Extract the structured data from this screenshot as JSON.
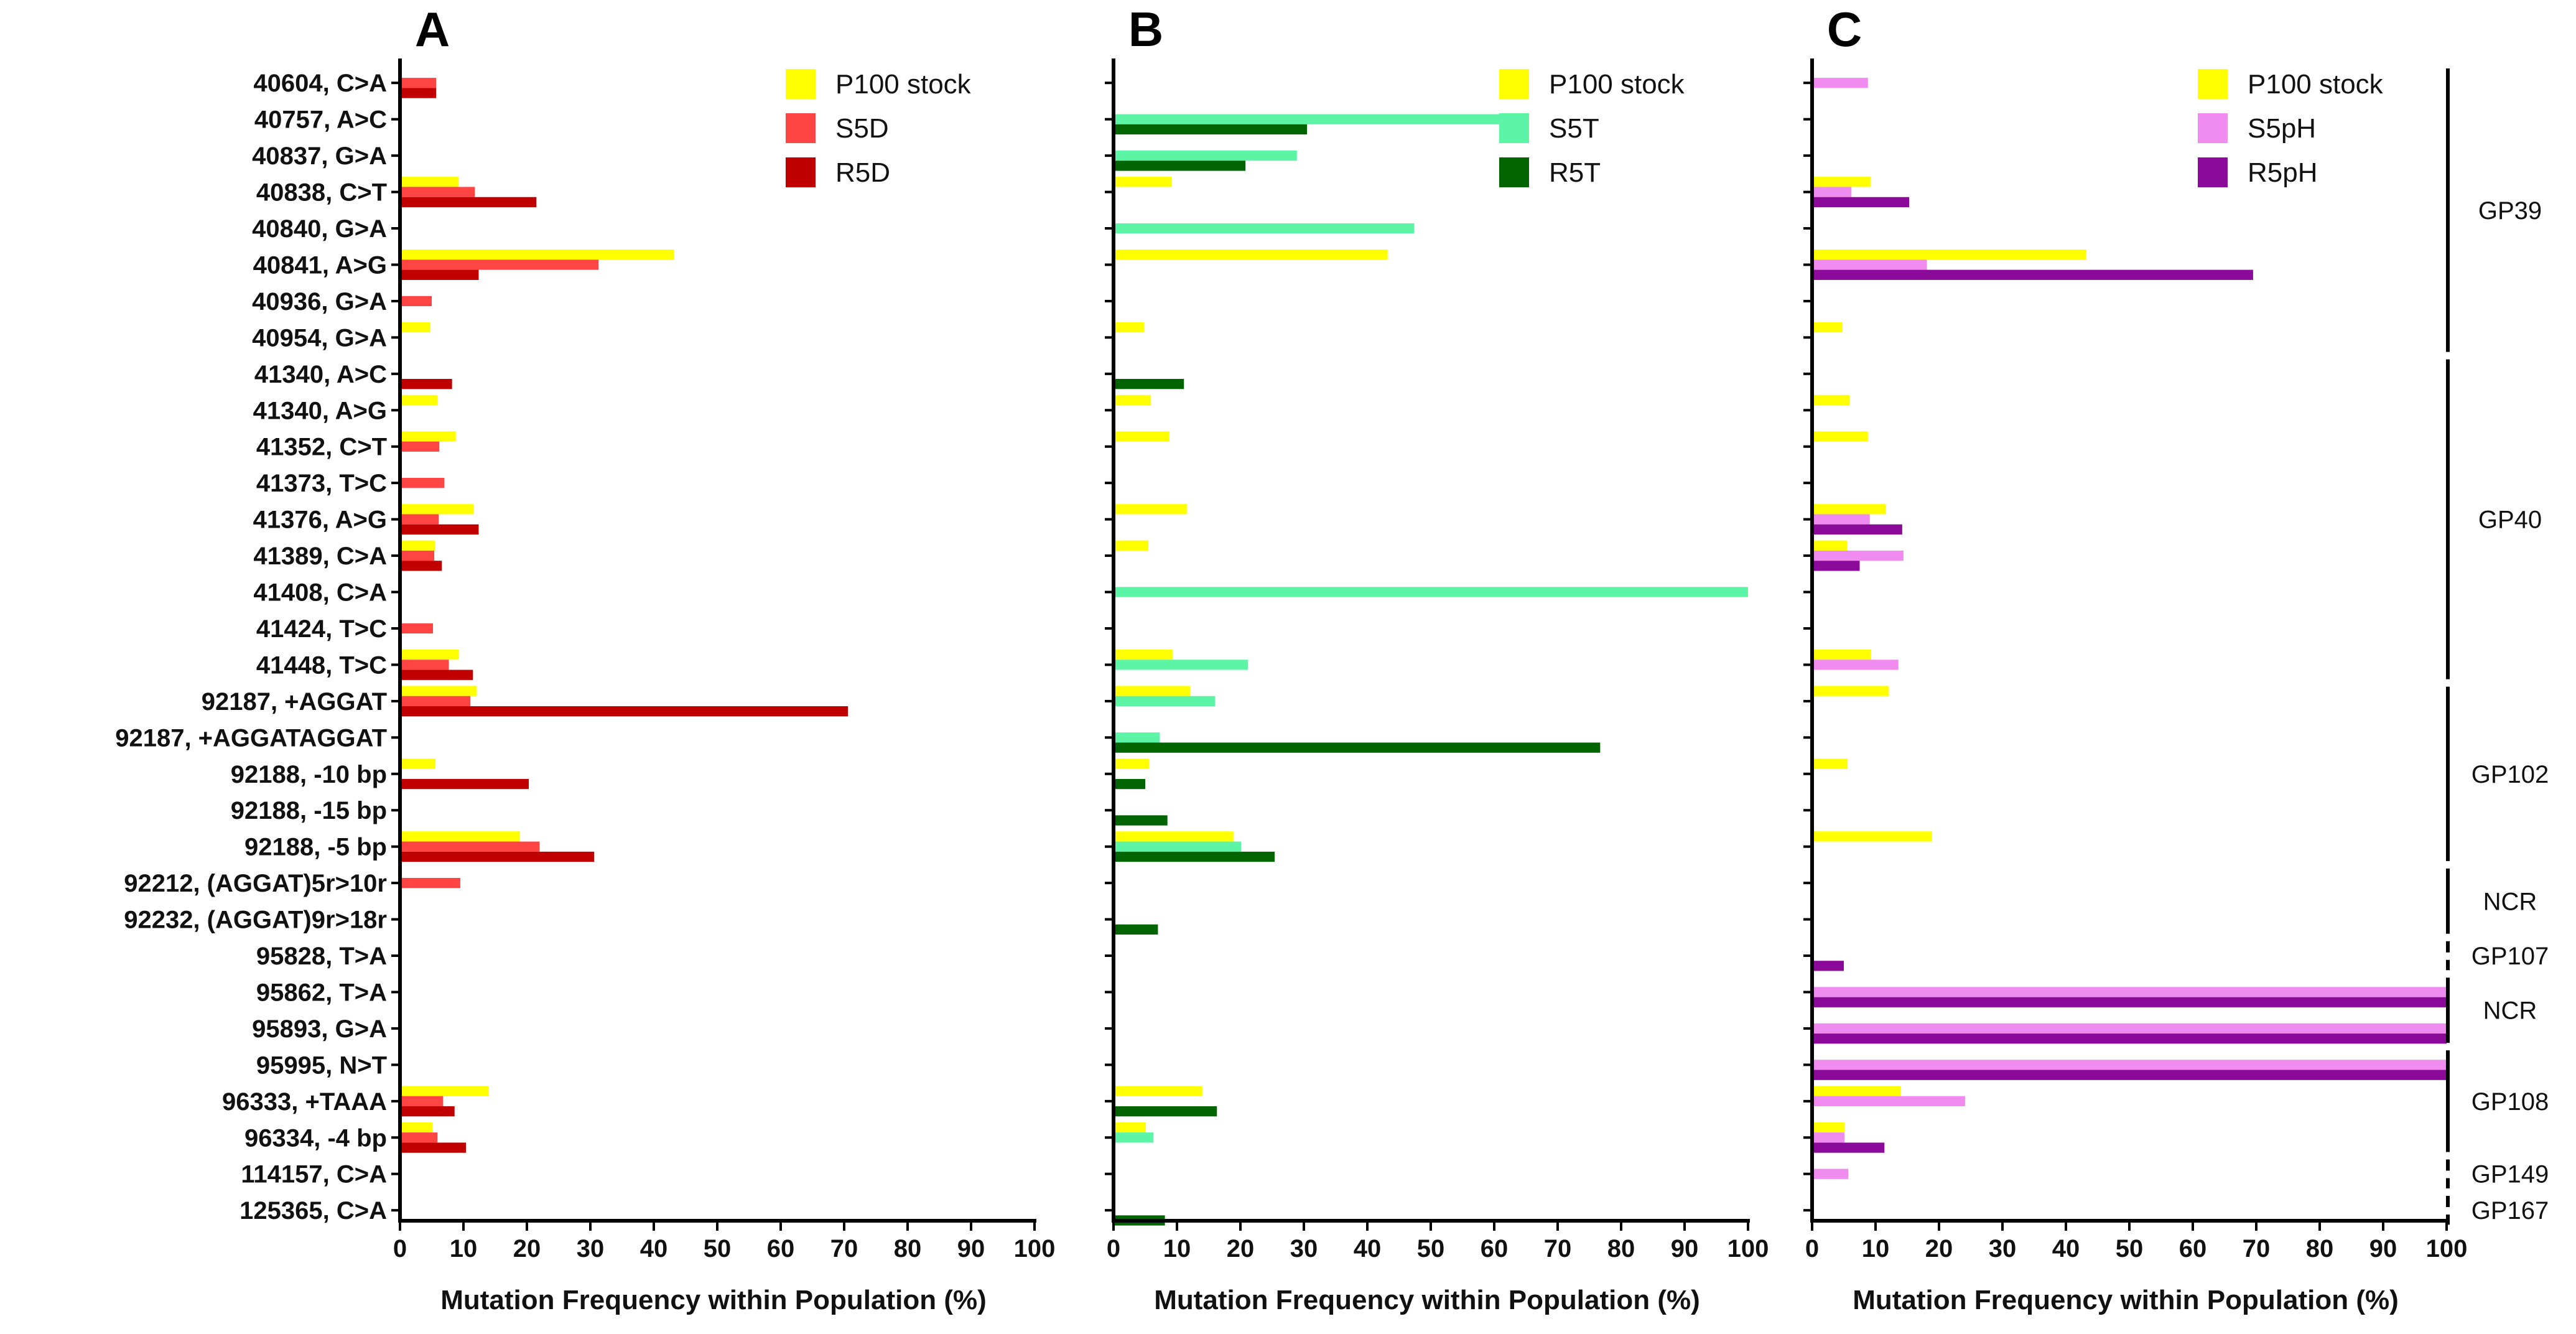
{
  "figure": {
    "panel_labels": [
      "A",
      "B",
      "C"
    ],
    "xlabel": "Mutation Frequency within Population (%)"
  },
  "chart_data": [
    {
      "type": "bar",
      "orientation": "horizontal",
      "panel": "A",
      "xlabel": "Mutation Frequency within Population (%)",
      "xlim": [
        0,
        100
      ],
      "xticks": [
        0,
        10,
        20,
        30,
        40,
        50,
        60,
        70,
        80,
        90,
        100
      ],
      "legend_position": "top-right",
      "categories": [
        "40604, C>A",
        "40757, A>C",
        "40837, G>A",
        "40838, C>T",
        "40840, G>A",
        "40841, A>G",
        "40936, G>A",
        "40954, G>A",
        "41340, A>C",
        "41340, A>G",
        "41352, C>T",
        "41373, T>C",
        "41376, A>G",
        "41389, C>A",
        "41408, C>A",
        "41424, T>C",
        "41448, T>C",
        "92187, +AGGAT",
        "92187, +AGGATAGGAT",
        "92188, -10 bp",
        "92188, -15 bp",
        "92188, -5 bp",
        "92212, (AGGAT)5r>10r",
        "92232, (AGGAT)9r>18r",
        "95828, T>A",
        "95862, T>A",
        "95893, G>A",
        "95995, N>T",
        "96333, +TAAA",
        "96334, -4 bp",
        "114157, C>A",
        "125365, C>A"
      ],
      "series": [
        {
          "name": "P100 stock",
          "color": "#FFFF00",
          "values": [
            0,
            0,
            0,
            9.2,
            0,
            43.2,
            0,
            4.8,
            0,
            5.9,
            8.8,
            0,
            11.6,
            5.5,
            0,
            0,
            9.3,
            12.1,
            0,
            5.6,
            0,
            18.9,
            0,
            0,
            0,
            0,
            0,
            0,
            14,
            5.1,
            0,
            0
          ]
        },
        {
          "name": "S5D",
          "color": "#FF4444",
          "values": [
            5.7,
            0,
            0,
            11.8,
            0,
            31.3,
            5,
            0,
            0,
            0,
            6.2,
            7,
            6.1,
            5.4,
            0,
            5.2,
            7.7,
            11.1,
            0,
            0,
            0,
            22,
            9.5,
            0,
            0,
            0,
            0,
            0,
            6.8,
            5.9,
            0,
            0
          ]
        },
        {
          "name": "R5D",
          "color": "#C00000",
          "values": [
            5.7,
            0,
            0,
            21.5,
            0,
            12.4,
            0,
            0,
            8.2,
            0,
            0,
            0,
            12.4,
            6.6,
            0,
            0,
            11.5,
            70.6,
            0,
            20.3,
            0,
            30.6,
            0,
            0,
            0,
            0,
            0,
            0,
            8.6,
            10.4,
            0,
            0
          ]
        }
      ]
    },
    {
      "type": "bar",
      "orientation": "horizontal",
      "panel": "B",
      "xlabel": "Mutation Frequency within Population (%)",
      "xlim": [
        0,
        100
      ],
      "xticks": [
        0,
        10,
        20,
        30,
        40,
        50,
        60,
        70,
        80,
        90,
        100
      ],
      "legend_position": "top-right",
      "categories": [
        "40604, C>A",
        "40757, A>C",
        "40837, G>A",
        "40838, C>T",
        "40840, G>A",
        "40841, A>G",
        "40936, G>A",
        "40954, G>A",
        "41340, A>C",
        "41340, A>G",
        "41352, C>T",
        "41373, T>C",
        "41376, A>G",
        "41389, C>A",
        "41408, C>A",
        "41424, T>C",
        "41448, T>C",
        "92187, +AGGAT",
        "92187, +AGGATAGGAT",
        "92188, -10 bp",
        "92188, -15 bp",
        "92188, -5 bp",
        "92212, (AGGAT)5r>10r",
        "92232, (AGGAT)9r>18r",
        "95828, T>A",
        "95862, T>A",
        "95893, G>A",
        "95995, N>T",
        "96333, +TAAA",
        "96334, -4 bp",
        "114157, C>A",
        "125365, C>A"
      ],
      "series": [
        {
          "name": "P100 stock",
          "color": "#FFFF00",
          "values": [
            0,
            0,
            0,
            9.2,
            0,
            43.2,
            0,
            4.8,
            0,
            5.9,
            8.8,
            0,
            11.6,
            5.5,
            0,
            0,
            9.3,
            12.1,
            0,
            5.6,
            0,
            18.9,
            0,
            0,
            0,
            0,
            0,
            0,
            14,
            5.1,
            0,
            0
          ]
        },
        {
          "name": "S5T",
          "color": "#5CF5A6",
          "values": [
            0,
            65.3,
            28.9,
            0,
            47.4,
            0,
            0,
            0,
            0,
            0,
            0,
            0,
            0,
            0,
            100,
            0,
            21.2,
            16,
            7.3,
            0,
            0,
            20.1,
            0,
            0,
            0,
            0,
            0,
            0,
            0,
            6.3,
            0,
            0
          ]
        },
        {
          "name": "R5T",
          "color": "#006400",
          "values": [
            0,
            30.5,
            20.8,
            0,
            0,
            0,
            0,
            0,
            11.1,
            0,
            0,
            0,
            0,
            0,
            0,
            0,
            0,
            0,
            76.7,
            5,
            8.5,
            25.4,
            0,
            7,
            0,
            0,
            0,
            0,
            16.3,
            0,
            0,
            8.1
          ]
        }
      ]
    },
    {
      "type": "bar",
      "orientation": "horizontal",
      "panel": "C",
      "xlabel": "Mutation Frequency within Population (%)",
      "xlim": [
        0,
        100
      ],
      "xticks": [
        0,
        10,
        20,
        30,
        40,
        50,
        60,
        70,
        80,
        90,
        100
      ],
      "legend_position": "top-right",
      "categories": [
        "40604, C>A",
        "40757, A>C",
        "40837, G>A",
        "40838, C>T",
        "40840, G>A",
        "40841, A>G",
        "40936, G>A",
        "40954, G>A",
        "41340, A>C",
        "41340, A>G",
        "41352, C>T",
        "41373, T>C",
        "41376, A>G",
        "41389, C>A",
        "41408, C>A",
        "41424, T>C",
        "41448, T>C",
        "92187, +AGGAT",
        "92187, +AGGATAGGAT",
        "92188, -10 bp",
        "92188, -15 bp",
        "92188, -5 bp",
        "92212, (AGGAT)5r>10r",
        "92232, (AGGAT)9r>18r",
        "95828, T>A",
        "95862, T>A",
        "95893, G>A",
        "95995, N>T",
        "96333, +TAAA",
        "96334, -4 bp",
        "114157, C>A",
        "125365, C>A"
      ],
      "series": [
        {
          "name": "P100 stock",
          "color": "#FFFF00",
          "values": [
            0,
            0,
            0,
            9.2,
            0,
            43.2,
            0,
            4.8,
            0,
            5.9,
            8.8,
            0,
            11.6,
            5.5,
            0,
            0,
            9.3,
            12.1,
            0,
            5.6,
            0,
            18.9,
            0,
            0,
            0,
            0,
            0,
            0,
            14,
            5.1,
            0,
            0
          ]
        },
        {
          "name": "S5pH",
          "color": "#F08CF0",
          "values": [
            8.8,
            0,
            0,
            6.2,
            0,
            18.1,
            0,
            0,
            0,
            0,
            0,
            0,
            9.1,
            14.4,
            0,
            0,
            13.6,
            0,
            0,
            0,
            0,
            0,
            0,
            0,
            0,
            100,
            100,
            100,
            24.1,
            5.1,
            5.7,
            0
          ]
        },
        {
          "name": "R5pH",
          "color": "#8B0A9A",
          "values": [
            0,
            0,
            0,
            15.3,
            0,
            69.5,
            0,
            0,
            0,
            0,
            0,
            0,
            14.2,
            7.5,
            0,
            0,
            0,
            0,
            0,
            0,
            0,
            0,
            0,
            0,
            5,
            100,
            100,
            100,
            0,
            11.4,
            0,
            0
          ]
        }
      ]
    }
  ],
  "gene_regions": [
    {
      "label": "GP39",
      "style": "solid",
      "first_row": 0,
      "last_row": 7
    },
    {
      "label": "GP40",
      "style": "solid",
      "first_row": 8,
      "last_row": 16
    },
    {
      "label": "GP102",
      "style": "solid",
      "first_row": 17,
      "last_row": 21
    },
    {
      "label": "NCR",
      "style": "solid",
      "first_row": 22,
      "last_row": 23
    },
    {
      "label": "GP107",
      "style": "dashed",
      "first_row": 24,
      "last_row": 24
    },
    {
      "label": "NCR",
      "style": "solid",
      "first_row": 25,
      "last_row": 26
    },
    {
      "label": "GP108",
      "style": "solid",
      "first_row": 27,
      "last_row": 29
    },
    {
      "label": "GP149",
      "style": "dashed",
      "first_row": 30,
      "last_row": 30
    },
    {
      "label": "GP167",
      "style": "dashed",
      "first_row": 31,
      "last_row": 31
    }
  ]
}
